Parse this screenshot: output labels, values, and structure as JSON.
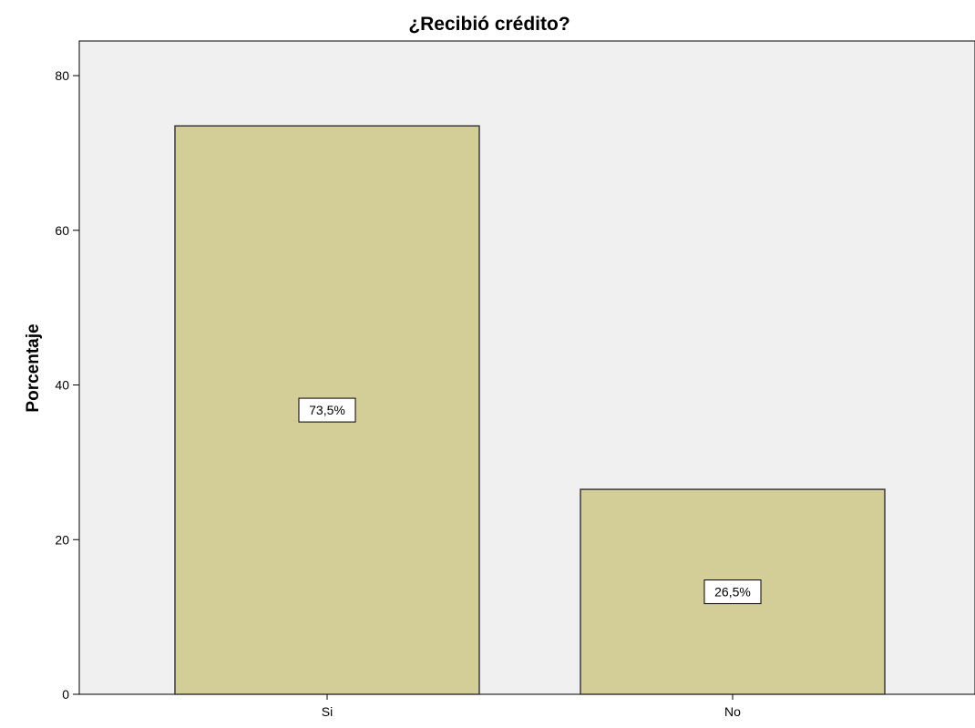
{
  "chart_data": {
    "type": "bar",
    "title": "¿Recibió crédito?",
    "xlabel": "",
    "ylabel": "Porcentaje",
    "categories": [
      "Si",
      "No"
    ],
    "values": [
      73.5,
      26.5
    ],
    "data_labels": [
      "73,5%",
      "26,5%"
    ],
    "ylim": [
      0,
      85
    ],
    "yticks": [
      0,
      20,
      40,
      60,
      80
    ],
    "ytick_labels": [
      "0",
      "20",
      "40",
      "60",
      "80"
    ],
    "grid": false,
    "legend": "none",
    "colors": {
      "bar_fill": "#d3cd98",
      "bar_stroke": "#3a3a3a",
      "plot_background": "#f0f0f0"
    }
  }
}
